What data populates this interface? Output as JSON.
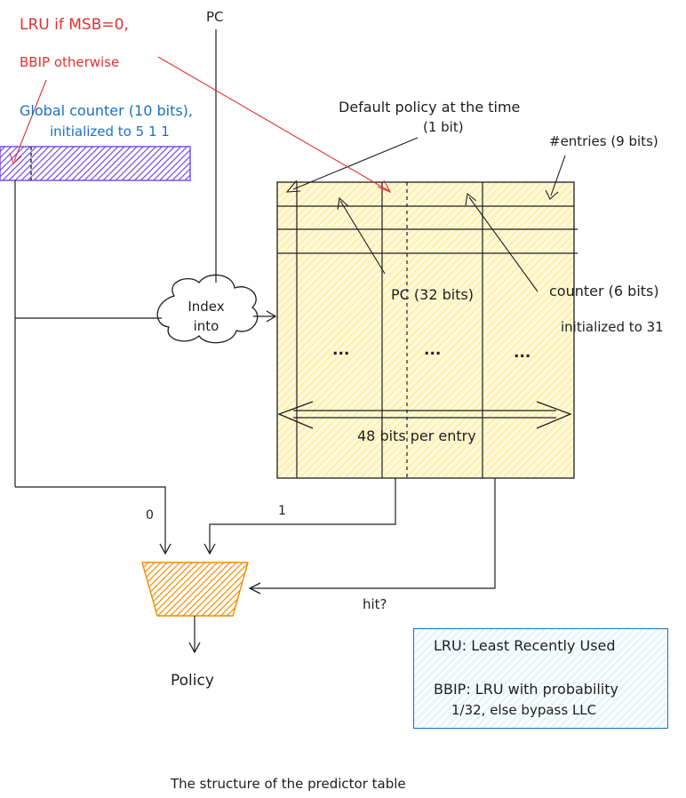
{
  "annotations": {
    "lru_rule_line1": "LRU if MSB=0,",
    "lru_rule_line2": "BBIP otherwise",
    "global_counter_line1": "Global counter (10 bits),",
    "global_counter_line2": "initialized to 5 1 1",
    "pc_input": "PC",
    "default_policy_line1": "Default policy at the time",
    "default_policy_line2": "(1 bit)",
    "entries": "#entries (9 bits)",
    "pc_field": "PC (32 bits)",
    "counter_field": "counter (6 bits)",
    "counter_init": "initialized to 31",
    "ellipsis_1": "...",
    "ellipsis_2": "...",
    "ellipsis_3": "...",
    "bits_per_entry": "48 bits per entry",
    "index_line1": "Index",
    "index_line2": "into",
    "mux_in0": "0",
    "mux_in1": "1",
    "hit": "hit?",
    "policy": "Policy",
    "caption": "The structure of the predictor table"
  },
  "legend": {
    "line1": "LRU: Least Recently Used",
    "line2": "BBIP: LRU with probability",
    "line3": "1/32, else bypass LLC"
  },
  "colors": {
    "table_fill": "#ffec99",
    "counter_fill": "#7048e8",
    "mux_fill": "#f08c00",
    "red": "#e03131",
    "blue": "#1971c2",
    "stroke": "#1e1e1e"
  }
}
